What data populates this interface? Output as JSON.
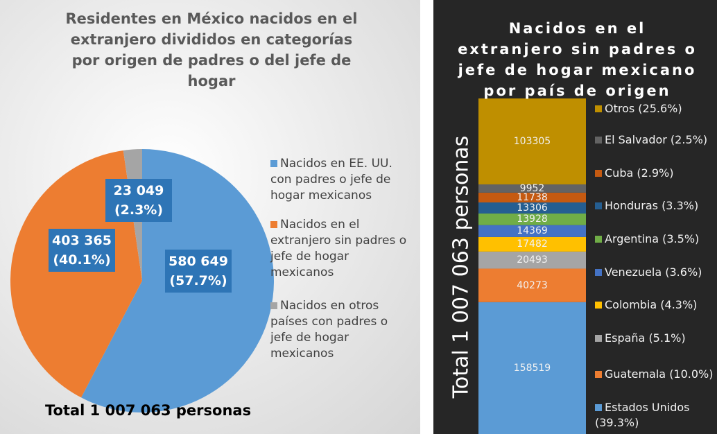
{
  "chart_data": [
    {
      "type": "pie",
      "title": "Residentes en México nacidos en el extranjero divididos en categorías por origen de padres o del jefe de hogar",
      "categories": [
        "Nacidos en EE. UU. con padres o jefe de hogar mexicanos",
        "Nacidos en el extranjero sin padres o jefe de hogar mexicanos",
        "Nacidos en otros países con padres o jefe de hogar mexicanos"
      ],
      "values": [
        580649,
        403365,
        23049
      ],
      "value_labels": [
        "580 649 (57.7%)",
        "403 365 (40.1%)",
        "23 049 (2.3%)"
      ],
      "colors": [
        "#5b9bd5",
        "#ed7d31",
        "#a5a5a5"
      ],
      "annotation": "Total 1 007 063 personas"
    },
    {
      "type": "stacked_bar",
      "title": "Nacidos en el extranjero sin padres o jefe de hogar mexicano por país de origen",
      "y_label": "Total 1 007 063 personas",
      "series": [
        {
          "name": "Estados Unidos (39.3%)",
          "color": "#5b9bd5",
          "values": [
            158519
          ]
        },
        {
          "name": "Guatemala (10.0%)",
          "color": "#ed7d31",
          "values": [
            40273
          ]
        },
        {
          "name": "España (5.1%)",
          "color": "#a5a5a5",
          "values": [
            20493
          ]
        },
        {
          "name": "Colombia (4.3%)",
          "color": "#ffc000",
          "values": [
            17482
          ]
        },
        {
          "name": "Venezuela (3.6%)",
          "color": "#4472c4",
          "values": [
            14369
          ]
        },
        {
          "name": "Argentina (3.5%)",
          "color": "#70ad47",
          "values": [
            13928
          ]
        },
        {
          "name": "Honduras (3.3%)",
          "color": "#255e91",
          "values": [
            13306
          ]
        },
        {
          "name": "Cuba (2.9%)",
          "color": "#c55a11",
          "values": [
            11738
          ]
        },
        {
          "name": "El Salvador (2.5%)",
          "color": "#636363",
          "values": [
            9952
          ]
        },
        {
          "name": "Otros (25.6%)",
          "color": "#bf8f00",
          "values": [
            103305
          ]
        }
      ]
    }
  ]
}
